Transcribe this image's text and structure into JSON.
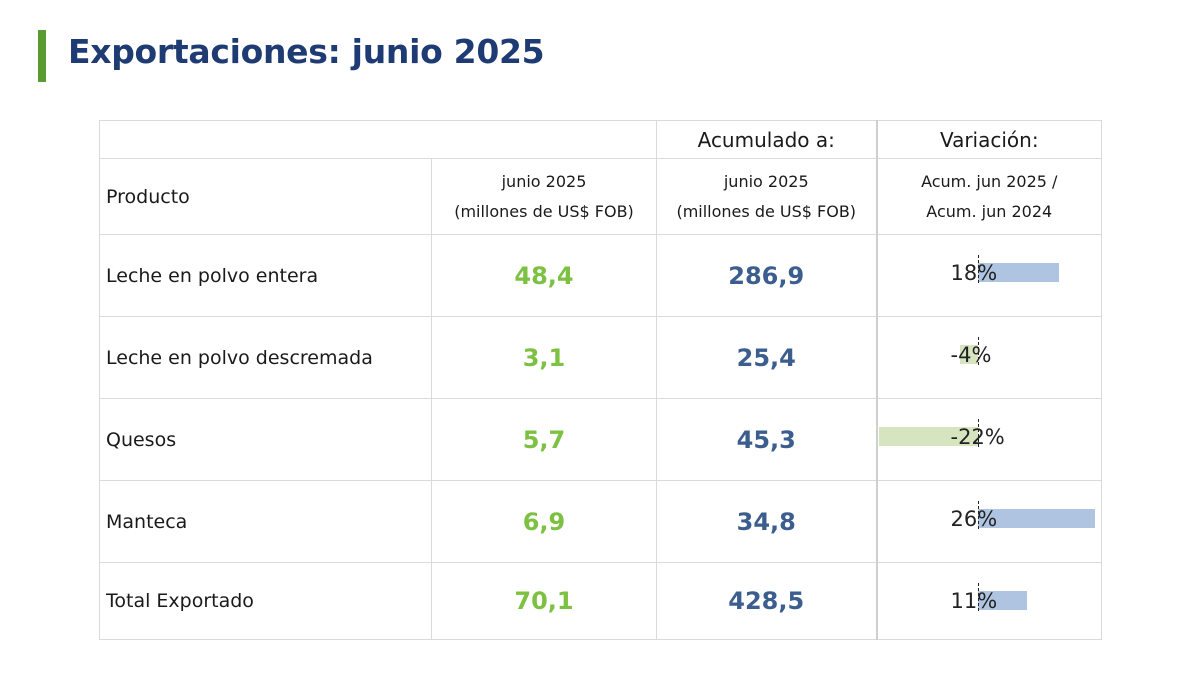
{
  "title": "Exportaciones: junio 2025",
  "table": {
    "header_top": {
      "acumulado": "Acumulado a:",
      "variacion": "Variación:"
    },
    "header": {
      "producto": "Producto",
      "junio_line1": "junio 2025",
      "junio_line2": "(millones de US$ FOB)",
      "acum_line1": "junio 2025",
      "acum_line2": "(millones de US$ FOB)",
      "var_line1": "Acum. jun 2025 /",
      "var_line2": "Acum. jun 2024"
    },
    "rows": [
      {
        "producto": "Leche en polvo entera",
        "junio": "48,4",
        "acumulado": "286,9",
        "variacion": "18%",
        "variacion_pct": 18
      },
      {
        "producto": "Leche en polvo descremada",
        "junio": "3,1",
        "acumulado": "25,4",
        "variacion": "-4%",
        "variacion_pct": -4
      },
      {
        "producto": "Quesos",
        "junio": "5,7",
        "acumulado": "45,3",
        "variacion": "-22%",
        "variacion_pct": -22
      },
      {
        "producto": "Manteca",
        "junio": "6,9",
        "acumulado": "34,8",
        "variacion": "26%",
        "variacion_pct": 26
      },
      {
        "producto": "Total Exportado",
        "junio": "70,1",
        "acumulado": "428,5",
        "variacion": "11%",
        "variacion_pct": 11
      }
    ]
  },
  "colors": {
    "title": "#1f3b73",
    "accent": "#5a9a32",
    "junio_values": "#7cc142",
    "acumulado_values": "#3b5e8f",
    "bar_positive": "#aec4e0",
    "bar_negative": "#d6e5bf"
  }
}
